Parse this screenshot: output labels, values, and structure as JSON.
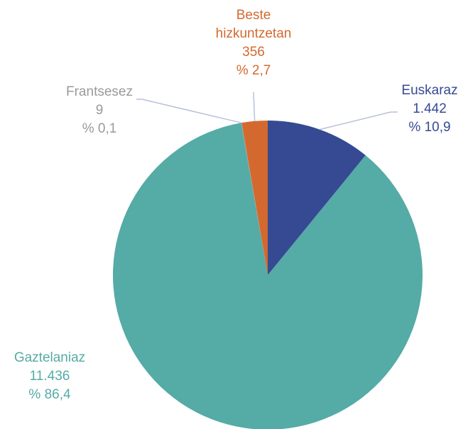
{
  "chart_data": {
    "type": "pie",
    "categories": [
      "Euskaraz",
      "Gaztelaniaz",
      "Frantsesez",
      "Beste hizkuntzetan"
    ],
    "values": [
      1442,
      11436,
      9,
      356
    ],
    "value_labels": [
      "1.442",
      "11.436",
      "9",
      "356"
    ],
    "percents": [
      10.9,
      86.4,
      0.1,
      2.7
    ],
    "percent_labels": [
      "% 10,9",
      "% 86,4",
      "% 0,1",
      "% 2,7"
    ],
    "colors": [
      "#354a93",
      "#55aba6",
      "#9a9a9a",
      "#d4692f"
    ]
  }
}
